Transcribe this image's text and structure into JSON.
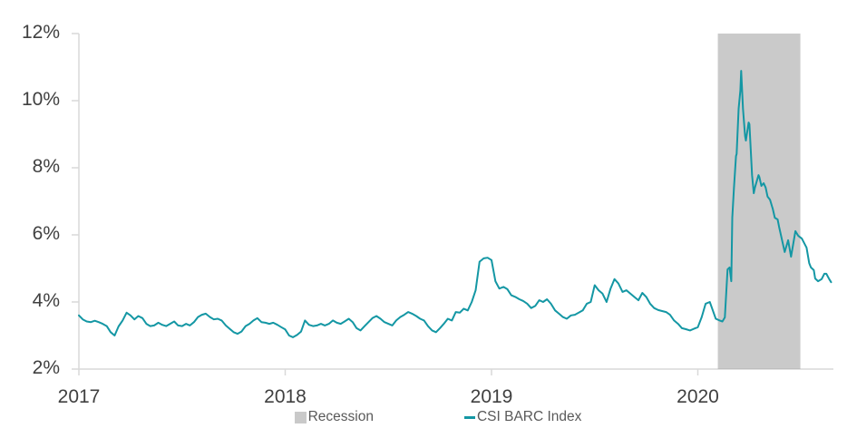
{
  "chart_data": {
    "type": "line",
    "title": "",
    "xlabel": "",
    "ylabel": "",
    "grid": false,
    "legend_position": "bottom",
    "xlim": [
      2017,
      2020.66
    ],
    "ylim": [
      2,
      12
    ],
    "x_ticks": {
      "values": [
        2017,
        2018,
        2019,
        2020
      ],
      "labels": [
        "2017",
        "2018",
        "2019",
        "2020"
      ]
    },
    "y_ticks": {
      "values": [
        2,
        4,
        6,
        8,
        10,
        12
      ],
      "labels": [
        "2%",
        "4%",
        "6%",
        "8%",
        "10%",
        "12%"
      ]
    },
    "band": {
      "label": "Recession",
      "x_start": 2020.097,
      "x_end": 2020.497,
      "fill": "#A6A6A6",
      "opacity": 0.6,
      "legend_swatch": "#C9C9C9"
    },
    "series": [
      {
        "name": "CSI BARC Index",
        "color": "#1497A4",
        "points": [
          [
            2017.0,
            3.6
          ],
          [
            2017.019,
            3.48
          ],
          [
            2017.038,
            3.42
          ],
          [
            2017.058,
            3.4
          ],
          [
            2017.077,
            3.44
          ],
          [
            2017.096,
            3.4
          ],
          [
            2017.115,
            3.35
          ],
          [
            2017.135,
            3.28
          ],
          [
            2017.154,
            3.1
          ],
          [
            2017.173,
            3.0
          ],
          [
            2017.192,
            3.27
          ],
          [
            2017.212,
            3.45
          ],
          [
            2017.231,
            3.68
          ],
          [
            2017.25,
            3.6
          ],
          [
            2017.269,
            3.48
          ],
          [
            2017.288,
            3.58
          ],
          [
            2017.308,
            3.52
          ],
          [
            2017.327,
            3.35
          ],
          [
            2017.346,
            3.28
          ],
          [
            2017.365,
            3.3
          ],
          [
            2017.385,
            3.38
          ],
          [
            2017.404,
            3.32
          ],
          [
            2017.423,
            3.28
          ],
          [
            2017.442,
            3.35
          ],
          [
            2017.462,
            3.42
          ],
          [
            2017.481,
            3.3
          ],
          [
            2017.5,
            3.28
          ],
          [
            2017.519,
            3.35
          ],
          [
            2017.538,
            3.3
          ],
          [
            2017.558,
            3.4
          ],
          [
            2017.577,
            3.55
          ],
          [
            2017.596,
            3.62
          ],
          [
            2017.615,
            3.65
          ],
          [
            2017.635,
            3.55
          ],
          [
            2017.654,
            3.48
          ],
          [
            2017.673,
            3.5
          ],
          [
            2017.692,
            3.45
          ],
          [
            2017.712,
            3.3
          ],
          [
            2017.731,
            3.2
          ],
          [
            2017.75,
            3.1
          ],
          [
            2017.769,
            3.05
          ],
          [
            2017.788,
            3.12
          ],
          [
            2017.808,
            3.28
          ],
          [
            2017.827,
            3.35
          ],
          [
            2017.846,
            3.45
          ],
          [
            2017.865,
            3.52
          ],
          [
            2017.885,
            3.4
          ],
          [
            2017.904,
            3.38
          ],
          [
            2017.923,
            3.35
          ],
          [
            2017.942,
            3.38
          ],
          [
            2017.962,
            3.32
          ],
          [
            2017.981,
            3.25
          ],
          [
            2018.0,
            3.18
          ],
          [
            2018.019,
            3.0
          ],
          [
            2018.038,
            2.95
          ],
          [
            2018.058,
            3.02
          ],
          [
            2018.077,
            3.12
          ],
          [
            2018.096,
            3.45
          ],
          [
            2018.115,
            3.32
          ],
          [
            2018.135,
            3.28
          ],
          [
            2018.154,
            3.3
          ],
          [
            2018.173,
            3.35
          ],
          [
            2018.192,
            3.3
          ],
          [
            2018.212,
            3.35
          ],
          [
            2018.231,
            3.45
          ],
          [
            2018.25,
            3.38
          ],
          [
            2018.269,
            3.35
          ],
          [
            2018.288,
            3.42
          ],
          [
            2018.308,
            3.5
          ],
          [
            2018.327,
            3.4
          ],
          [
            2018.346,
            3.22
          ],
          [
            2018.365,
            3.15
          ],
          [
            2018.385,
            3.28
          ],
          [
            2018.404,
            3.4
          ],
          [
            2018.423,
            3.52
          ],
          [
            2018.442,
            3.58
          ],
          [
            2018.462,
            3.5
          ],
          [
            2018.481,
            3.4
          ],
          [
            2018.5,
            3.35
          ],
          [
            2018.519,
            3.3
          ],
          [
            2018.538,
            3.45
          ],
          [
            2018.558,
            3.55
          ],
          [
            2018.577,
            3.62
          ],
          [
            2018.596,
            3.7
          ],
          [
            2018.615,
            3.65
          ],
          [
            2018.635,
            3.58
          ],
          [
            2018.654,
            3.5
          ],
          [
            2018.673,
            3.45
          ],
          [
            2018.692,
            3.28
          ],
          [
            2018.712,
            3.15
          ],
          [
            2018.731,
            3.1
          ],
          [
            2018.75,
            3.22
          ],
          [
            2018.769,
            3.35
          ],
          [
            2018.788,
            3.5
          ],
          [
            2018.808,
            3.45
          ],
          [
            2018.827,
            3.7
          ],
          [
            2018.846,
            3.68
          ],
          [
            2018.865,
            3.8
          ],
          [
            2018.885,
            3.75
          ],
          [
            2018.904,
            4.0
          ],
          [
            2018.923,
            4.35
          ],
          [
            2018.942,
            5.2
          ],
          [
            2018.962,
            5.3
          ],
          [
            2018.981,
            5.32
          ],
          [
            2019.0,
            5.25
          ],
          [
            2019.019,
            4.62
          ],
          [
            2019.038,
            4.4
          ],
          [
            2019.058,
            4.45
          ],
          [
            2019.077,
            4.38
          ],
          [
            2019.096,
            4.2
          ],
          [
            2019.115,
            4.15
          ],
          [
            2019.135,
            4.08
          ],
          [
            2019.154,
            4.03
          ],
          [
            2019.173,
            3.95
          ],
          [
            2019.192,
            3.82
          ],
          [
            2019.212,
            3.88
          ],
          [
            2019.231,
            4.05
          ],
          [
            2019.25,
            4.0
          ],
          [
            2019.269,
            4.08
          ],
          [
            2019.288,
            3.95
          ],
          [
            2019.308,
            3.75
          ],
          [
            2019.327,
            3.65
          ],
          [
            2019.346,
            3.55
          ],
          [
            2019.365,
            3.5
          ],
          [
            2019.385,
            3.6
          ],
          [
            2019.404,
            3.62
          ],
          [
            2019.423,
            3.68
          ],
          [
            2019.442,
            3.75
          ],
          [
            2019.462,
            3.95
          ],
          [
            2019.481,
            4.0
          ],
          [
            2019.5,
            4.5
          ],
          [
            2019.519,
            4.35
          ],
          [
            2019.538,
            4.25
          ],
          [
            2019.558,
            4.0
          ],
          [
            2019.577,
            4.4
          ],
          [
            2019.596,
            4.68
          ],
          [
            2019.615,
            4.55
          ],
          [
            2019.635,
            4.3
          ],
          [
            2019.654,
            4.35
          ],
          [
            2019.673,
            4.25
          ],
          [
            2019.692,
            4.15
          ],
          [
            2019.712,
            4.05
          ],
          [
            2019.731,
            4.27
          ],
          [
            2019.75,
            4.15
          ],
          [
            2019.769,
            3.95
          ],
          [
            2019.788,
            3.82
          ],
          [
            2019.808,
            3.76
          ],
          [
            2019.827,
            3.73
          ],
          [
            2019.846,
            3.7
          ],
          [
            2019.865,
            3.62
          ],
          [
            2019.885,
            3.45
          ],
          [
            2019.904,
            3.35
          ],
          [
            2019.923,
            3.22
          ],
          [
            2019.942,
            3.19
          ],
          [
            2019.962,
            3.15
          ],
          [
            2019.981,
            3.2
          ],
          [
            2020.0,
            3.25
          ],
          [
            2020.019,
            3.55
          ],
          [
            2020.038,
            3.95
          ],
          [
            2020.058,
            4.0
          ],
          [
            2020.067,
            3.85
          ],
          [
            2020.087,
            3.5
          ],
          [
            2020.106,
            3.45
          ],
          [
            2020.119,
            3.42
          ],
          [
            2020.131,
            3.54
          ],
          [
            2020.144,
            4.97
          ],
          [
            2020.154,
            5.03
          ],
          [
            2020.162,
            4.62
          ],
          [
            2020.167,
            6.51
          ],
          [
            2020.175,
            7.38
          ],
          [
            2020.185,
            8.35
          ],
          [
            2020.188,
            8.41
          ],
          [
            2020.198,
            9.76
          ],
          [
            2020.206,
            10.3
          ],
          [
            2020.21,
            10.89
          ],
          [
            2020.219,
            9.76
          ],
          [
            2020.229,
            8.95
          ],
          [
            2020.233,
            8.81
          ],
          [
            2020.246,
            9.35
          ],
          [
            2020.25,
            9.3
          ],
          [
            2020.263,
            7.78
          ],
          [
            2020.271,
            7.24
          ],
          [
            2020.277,
            7.41
          ],
          [
            2020.294,
            7.78
          ],
          [
            2020.298,
            7.73
          ],
          [
            2020.308,
            7.46
          ],
          [
            2020.319,
            7.54
          ],
          [
            2020.329,
            7.41
          ],
          [
            2020.338,
            7.14
          ],
          [
            2020.35,
            7.05
          ],
          [
            2020.36,
            6.84
          ],
          [
            2020.363,
            6.78
          ],
          [
            2020.373,
            6.51
          ],
          [
            2020.387,
            6.46
          ],
          [
            2020.394,
            6.24
          ],
          [
            2020.421,
            5.49
          ],
          [
            2020.438,
            5.84
          ],
          [
            2020.452,
            5.35
          ],
          [
            2020.473,
            6.11
          ],
          [
            2020.487,
            5.97
          ],
          [
            2020.504,
            5.89
          ],
          [
            2020.527,
            5.62
          ],
          [
            2020.54,
            5.16
          ],
          [
            2020.548,
            5.03
          ],
          [
            2020.562,
            4.95
          ],
          [
            2020.569,
            4.7
          ],
          [
            2020.583,
            4.62
          ],
          [
            2020.6,
            4.68
          ],
          [
            2020.613,
            4.84
          ],
          [
            2020.623,
            4.84
          ],
          [
            2020.637,
            4.68
          ],
          [
            2020.646,
            4.59
          ]
        ]
      }
    ]
  },
  "colors": {
    "background": "#FFFFFF",
    "axis": "#D9D9D9",
    "tick_label": "#404040",
    "legend_text": "#595959"
  }
}
